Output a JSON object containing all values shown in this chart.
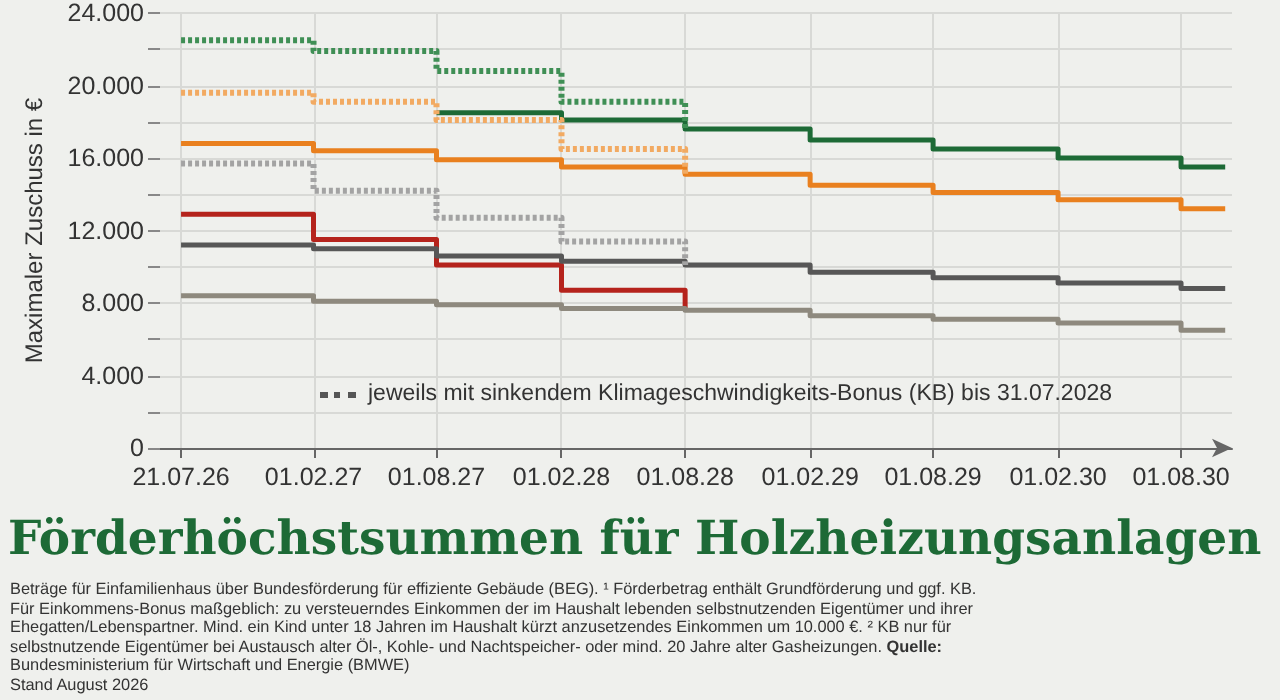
{
  "chart_data": {
    "type": "step",
    "title": "Förderhöchstsummen für Holzheizungsanlagen",
    "ylabel": "Maximaler Zuschuss in €",
    "x": [
      "2026-07-21",
      "2027-02-01",
      "2027-08-01",
      "2028-02-01",
      "2028-08-01",
      "2029-02-01",
      "2029-08-01",
      "2030-02-01",
      "2030-08-01",
      "2030-10-05"
    ],
    "series": [
      {
        "color": "#3f8f55",
        "line_style": "dotted",
        "values": [
          22500,
          21900,
          20800,
          19100,
          17600,
          null,
          null,
          null,
          null,
          null
        ]
      },
      {
        "color": "#f2aa62",
        "line_style": "dotted",
        "values": [
          19600,
          19100,
          18100,
          16500,
          15100,
          null,
          null,
          null,
          null,
          null
        ]
      },
      {
        "color": "#a3a3a3",
        "line_style": "dotted",
        "values": [
          15700,
          14200,
          12700,
          11400,
          10100,
          null,
          null,
          null,
          null,
          null
        ]
      },
      {
        "color": "#1d6a36",
        "line_style": "solid",
        "values": [
          null,
          null,
          18500,
          18100,
          17600,
          17000,
          16500,
          16000,
          15500,
          15500
        ]
      },
      {
        "color": "#e9801f",
        "line_style": "solid",
        "values": [
          16800,
          16400,
          15900,
          15500,
          15100,
          14500,
          14100,
          13700,
          13200,
          13200
        ]
      },
      {
        "color": "#b5231c",
        "line_style": "solid",
        "values": [
          12900,
          11500,
          10100,
          8700,
          7600,
          null,
          null,
          null,
          null,
          null
        ]
      },
      {
        "color": "#575757",
        "line_style": "solid",
        "values": [
          11200,
          11000,
          10600,
          10300,
          10100,
          9700,
          9400,
          9100,
          8800,
          8800
        ]
      },
      {
        "color": "#8e897e",
        "line_style": "solid",
        "values": [
          8400,
          8100,
          7900,
          7700,
          7600,
          7300,
          7100,
          6900,
          6500,
          6500
        ]
      }
    ],
    "xlim": [
      "2026-06-20",
      "2030-10-15"
    ],
    "xticks": [
      {
        "value": "2026-07-21",
        "label": "21.07.26"
      },
      {
        "value": "2027-02-01",
        "label": "01.02.27"
      },
      {
        "value": "2027-08-01",
        "label": "01.08.27"
      },
      {
        "value": "2028-02-01",
        "label": "01.02.28"
      },
      {
        "value": "2028-08-01",
        "label": "01.08.28"
      },
      {
        "value": "2029-02-01",
        "label": "01.02.29"
      },
      {
        "value": "2029-08-01",
        "label": "01.08.29"
      },
      {
        "value": "2030-02-01",
        "label": "01.02.30"
      },
      {
        "value": "2030-08-01",
        "label": "01.08.30"
      }
    ],
    "ylim": [
      0,
      24000
    ],
    "yticks": [
      {
        "value": 0,
        "label": "0"
      },
      {
        "value": 2000,
        "label": null
      },
      {
        "value": 4000,
        "label": "4.000"
      },
      {
        "value": 6000,
        "label": null
      },
      {
        "value": 8000,
        "label": "8.000"
      },
      {
        "value": 10000,
        "label": null
      },
      {
        "value": 12000,
        "label": "12.000"
      },
      {
        "value": 14000,
        "label": null
      },
      {
        "value": 16000,
        "label": "16.000"
      },
      {
        "value": 18000,
        "label": null
      },
      {
        "value": 20000,
        "label": "20.000"
      },
      {
        "value": 22000,
        "label": null
      },
      {
        "value": 24000,
        "label": "24.000"
      }
    ],
    "grid": true,
    "annotations": [
      "jeweils mit sinkendem Klimageschwindigkeits-Bonus (KB) bis 31.07.2028",
      "Beträge für Einfamilienhaus über Bundesförderung für effiziente Gebäude (BEG). ¹ Förderbetrag enthält Grundförderung und ggf. KB. Für Einkommens-Bonus maßgeblich: zu versteuerndes Einkommen der im Haushalt lebenden selbstnutzenden Eigentümer und ihrer Ehegatten/Lebenspartner. Mind. ein Kind unter 18 Jahren im Haushalt kürzt anzusetzendes Einkommen um 10.000 €. ² KB nur für selbstnutzende Eigentümer bei Austausch alter Öl-, Kohle- und Nachtspeicher- oder mind. 20 Jahre alter Gasheizungen.",
      "Quelle: Bundesministerium für Wirtschaft und Energie (BMWE)",
      "Stand August 2026"
    ]
  }
}
